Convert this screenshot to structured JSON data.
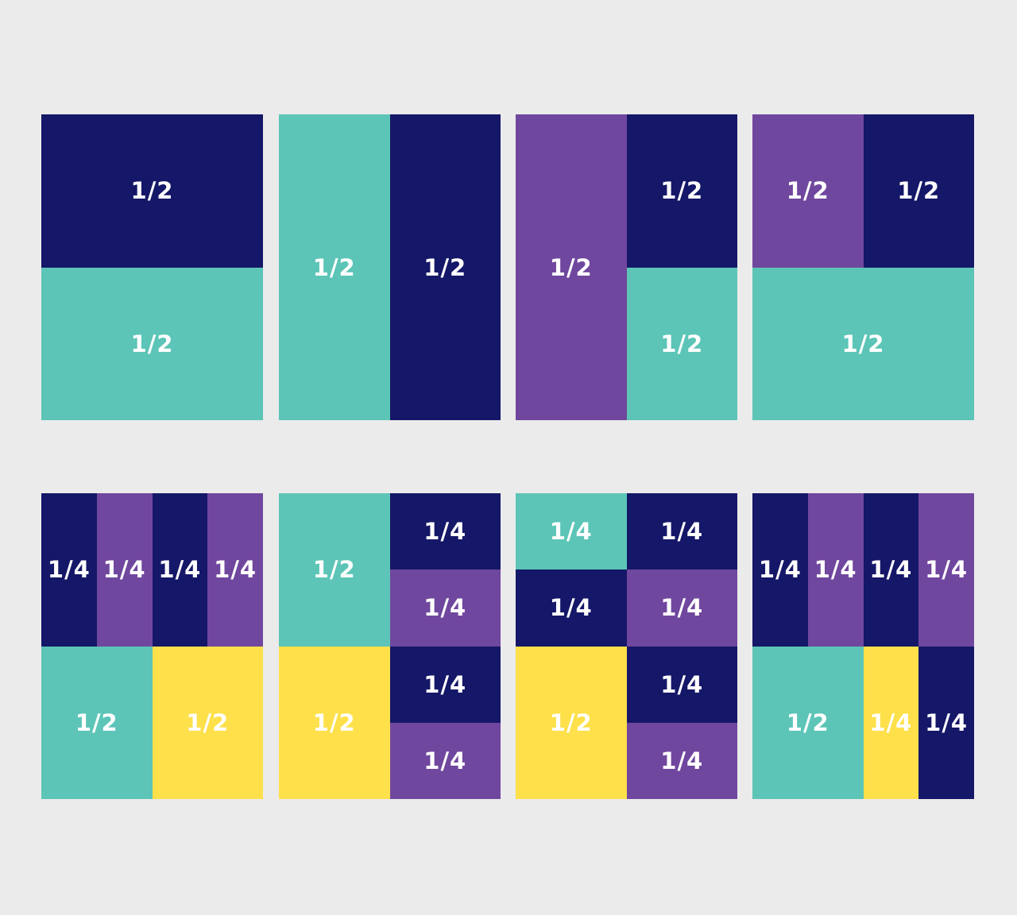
{
  "panels": [
    [
      "1/2",
      "1/2"
    ],
    [
      "1/2",
      "1/2"
    ],
    [
      "1/2",
      "1/2",
      "1/2"
    ],
    [
      "1/2",
      "1/2",
      "1/2"
    ],
    [
      "1/4",
      "1/4",
      "1/4",
      "1/4",
      "1/2",
      "1/2"
    ],
    [
      "1/2",
      "1/4",
      "1/4",
      "1/4",
      "1/4",
      "1/2"
    ],
    [
      "1/4",
      "1/4",
      "1/4",
      "1/4",
      "1/2",
      "1/4",
      "1/4"
    ],
    [
      "1/4",
      "1/4",
      "1/4",
      "1/4",
      "1/2",
      "1/4",
      "1/4"
    ]
  ]
}
